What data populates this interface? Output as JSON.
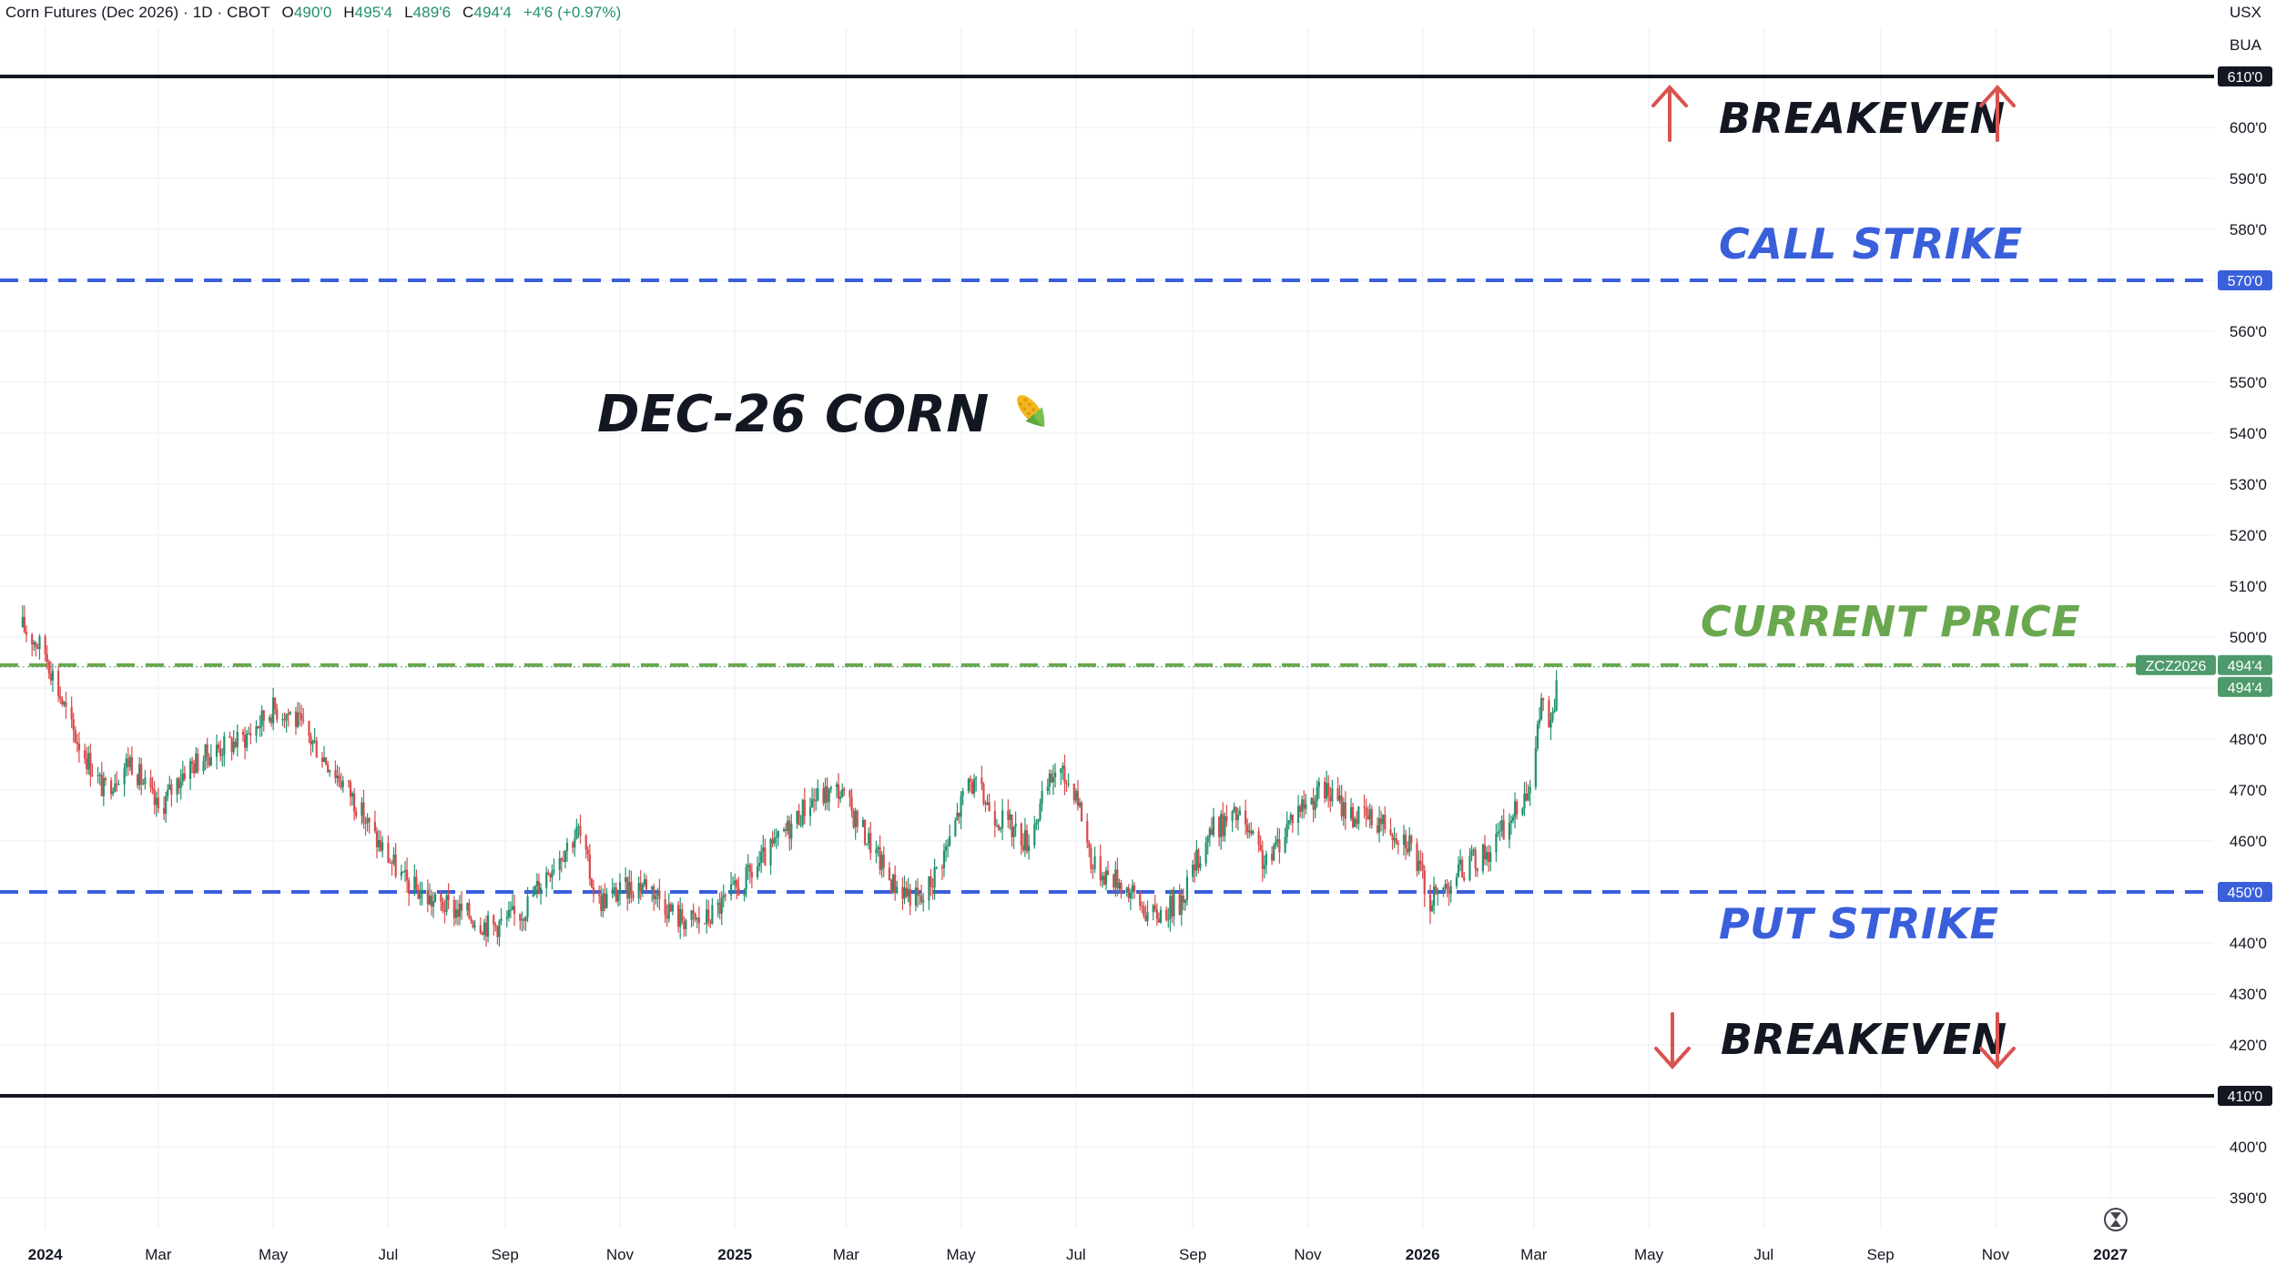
{
  "header": {
    "symbol_name": "Corn Futures (Dec 2026) · 1D · CBOT",
    "o_label": "O",
    "o_value": "490'0",
    "h_label": "H",
    "h_value": "495'4",
    "l_label": "L",
    "l_value": "489'6",
    "c_label": "C",
    "c_value": "494'4",
    "change": "+4'6 (+0.97%)"
  },
  "units": {
    "currency": "USX",
    "unit": "BUA"
  },
  "annotations": {
    "title": "DEC-26 CORN",
    "title_icon": "corn-icon",
    "breakeven_top": "BREAKEVEN",
    "call_strike": "CALL STRIKE",
    "current_price": "CURRENT PRICE",
    "put_strike": "PUT STRIKE",
    "breakeven_bottom": "BREAKEVEN"
  },
  "colors": {
    "call_strike": "#3a5fdb",
    "put_strike": "#3a5fdb",
    "current_price": "#6aa84f",
    "breakeven": "#131722",
    "arrow": "#d9534f",
    "candle_up": "#22916e",
    "candle_down": "#d94a4a",
    "price_pill": "#4e9a6c"
  },
  "price_labels": {
    "symbol_tag": "ZCZ2026",
    "last": "494'4",
    "last2": "494'4",
    "upper_breakeven": "610'0",
    "call_strike": "570'0",
    "put_strike": "450'0",
    "lower_breakeven": "410'0"
  },
  "chart_data": {
    "type": "candlestick",
    "symbol": "ZCZ2026",
    "interval": "1D",
    "y_axis": {
      "ticks": [
        "390'0",
        "400'0",
        "410'0",
        "420'0",
        "430'0",
        "440'0",
        "450'0",
        "460'0",
        "470'0",
        "480'0",
        "490'0",
        "500'0",
        "510'0",
        "520'0",
        "530'0",
        "540'0",
        "550'0",
        "560'0",
        "570'0",
        "580'0",
        "590'0",
        "600'0",
        "610'0"
      ],
      "tick_values": [
        390,
        400,
        410,
        420,
        430,
        440,
        450,
        460,
        470,
        480,
        490,
        500,
        510,
        520,
        530,
        540,
        550,
        560,
        570,
        580,
        590,
        600,
        610
      ],
      "ylim": [
        384,
        620
      ]
    },
    "x_axis": {
      "labels": [
        "2024",
        "Mar",
        "May",
        "Jul",
        "Sep",
        "Nov",
        "2025",
        "Mar",
        "May",
        "Jul",
        "Sep",
        "Nov",
        "2026",
        "Mar",
        "May",
        "Jul",
        "Sep",
        "Nov",
        "2027"
      ],
      "bold": [
        true,
        false,
        false,
        false,
        false,
        false,
        true,
        false,
        false,
        false,
        false,
        false,
        true,
        false,
        false,
        false,
        false,
        false,
        true
      ],
      "dates": [
        "2024-01-01",
        "2024-03-01",
        "2024-05-01",
        "2024-07-01",
        "2024-09-01",
        "2024-11-01",
        "2025-01-01",
        "2025-03-01",
        "2025-05-01",
        "2025-07-01",
        "2025-09-01",
        "2025-11-01",
        "2026-01-01",
        "2026-03-01",
        "2026-05-01",
        "2026-07-01",
        "2026-09-01",
        "2026-11-01",
        "2027-01-01"
      ]
    },
    "horizontal_lines": [
      {
        "name": "BREAKEVEN",
        "value": 610,
        "style": "solid"
      },
      {
        "name": "CALL STRIKE",
        "value": 570,
        "style": "dashed"
      },
      {
        "name": "CURRENT PRICE",
        "value": 494.5,
        "style": "dashed"
      },
      {
        "name": "PUT STRIKE",
        "value": 450,
        "style": "dashed"
      },
      {
        "name": "BREAKEVEN",
        "value": 410,
        "style": "solid"
      }
    ],
    "series": [
      {
        "close": [
          [
            "2023-12-20",
            502
          ],
          [
            "2024-01-01",
            497
          ],
          [
            "2024-01-15",
            482
          ],
          [
            "2024-02-01",
            470
          ],
          [
            "2024-02-15",
            476
          ],
          [
            "2024-03-01",
            466
          ],
          [
            "2024-03-15",
            474
          ],
          [
            "2024-04-01",
            478
          ],
          [
            "2024-04-15",
            480
          ],
          [
            "2024-05-01",
            486
          ],
          [
            "2024-05-10",
            485
          ],
          [
            "2024-05-25",
            478
          ],
          [
            "2024-06-10",
            470
          ],
          [
            "2024-06-25",
            460
          ],
          [
            "2024-07-10",
            452
          ],
          [
            "2024-07-25",
            448
          ],
          [
            "2024-08-10",
            446
          ],
          [
            "2024-08-25",
            443
          ],
          [
            "2024-09-10",
            446
          ],
          [
            "2024-09-25",
            455
          ],
          [
            "2024-10-10",
            462
          ],
          [
            "2024-10-20",
            448
          ],
          [
            "2024-11-01",
            450
          ],
          [
            "2024-11-15",
            452
          ],
          [
            "2024-12-01",
            445
          ],
          [
            "2024-12-15",
            444
          ],
          [
            "2025-01-01",
            450
          ],
          [
            "2025-01-20",
            458
          ],
          [
            "2025-02-10",
            468
          ],
          [
            "2025-02-25",
            470
          ],
          [
            "2025-03-10",
            462
          ],
          [
            "2025-03-25",
            452
          ],
          [
            "2025-04-10",
            448
          ],
          [
            "2025-04-25",
            460
          ],
          [
            "2025-05-05",
            472
          ],
          [
            "2025-05-20",
            465
          ],
          [
            "2025-06-05",
            460
          ],
          [
            "2025-06-20",
            474
          ],
          [
            "2025-07-01",
            470
          ],
          [
            "2025-07-10",
            455
          ],
          [
            "2025-07-25",
            452
          ],
          [
            "2025-08-10",
            445
          ],
          [
            "2025-08-25",
            448
          ],
          [
            "2025-09-10",
            462
          ],
          [
            "2025-09-25",
            465
          ],
          [
            "2025-10-10",
            455
          ],
          [
            "2025-10-25",
            466
          ],
          [
            "2025-11-10",
            470
          ],
          [
            "2025-11-25",
            465
          ],
          [
            "2025-12-10",
            464
          ],
          [
            "2025-12-25",
            460
          ],
          [
            "2026-01-05",
            448
          ],
          [
            "2026-01-20",
            454
          ],
          [
            "2026-02-05",
            458
          ],
          [
            "2026-02-20",
            466
          ],
          [
            "2026-03-01",
            474
          ],
          [
            "2026-03-05",
            488
          ],
          [
            "2026-03-10",
            482
          ],
          [
            "2026-03-15",
            494.5
          ]
        ]
      }
    ],
    "grid": true,
    "last": {
      "date": "2026-03-15",
      "open": 490.0,
      "high": 495.5,
      "low": 489.75,
      "close": 494.5,
      "change": 4.75,
      "change_pct": 0.97
    }
  }
}
